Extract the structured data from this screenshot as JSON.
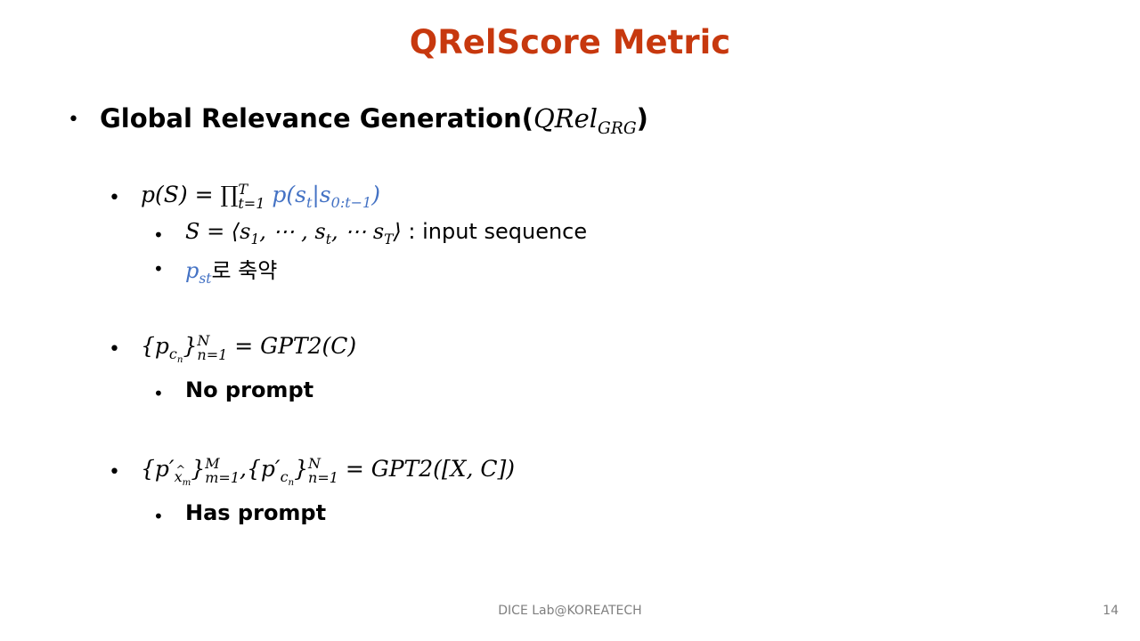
{
  "slide": {
    "title": "QRelScore Metric",
    "bullet1": {
      "text": "Global Relevance Generation(",
      "math_base": "QRel",
      "math_sub": "GRG",
      "close": ")"
    },
    "formula1": {
      "lhs": "p(S) = ∏",
      "prod_sub": "t=1",
      "prod_sup": "T",
      "rhs_blue": "p(s",
      "s_t_sub": "t",
      "bar": "|s",
      "s0_sub": "0:t−1",
      "rhs_close": ")"
    },
    "sub1": {
      "math": "S = ⟨s",
      "s1": "1",
      "mid": ", ⋯ , s",
      "st": "t",
      "mid2": ", ⋯ s",
      "sT": "T",
      "close": "⟩",
      "text": " : input sequence"
    },
    "sub2": {
      "math_base": "p",
      "math_sub": "st",
      "text": "로 축약"
    },
    "formula2": {
      "open": "{p",
      "c_sub": "c",
      "n_sub": "n",
      "close": "}",
      "sup": "N",
      "sub": "n=1",
      "rhs": " = GPT2(C)"
    },
    "sub3": "No prompt",
    "formula3": {
      "open1": "{p′",
      "x_sub": "x",
      "m_sub": "m",
      "close1": "}",
      "sup1": "M",
      "sub1": "m=1",
      "comma": ",",
      "open2": "{p′",
      "c_sub": "c",
      "n_sub": "n",
      "close2": "}",
      "sup2": "N",
      "sub2": "n=1",
      "rhs": " = GPT2([X, C])"
    },
    "sub4": "Has prompt"
  },
  "footer": {
    "lab": "DICE  Lab@KOREATECH",
    "page_number": "14"
  },
  "colors": {
    "title": "#c7380e",
    "math_blue": "#4472c4",
    "footer": "#7f7f7f"
  },
  "bullet_char": "•"
}
